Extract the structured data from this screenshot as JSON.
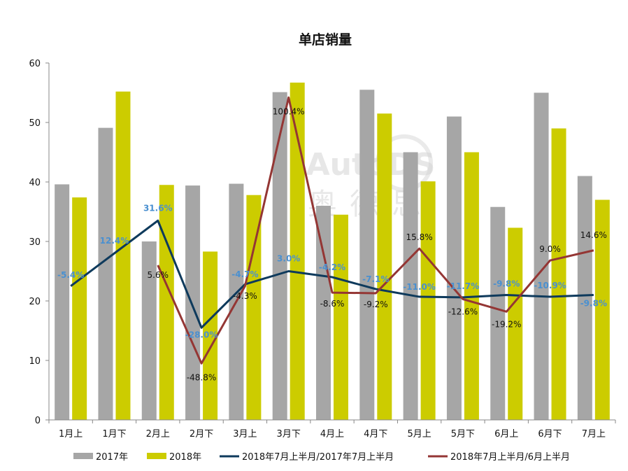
{
  "chart_data": {
    "type": "bar",
    "title": "单店销量",
    "categories": [
      "1月上",
      "1月下",
      "2月上",
      "2月下",
      "3月上",
      "3月下",
      "4月上",
      "4月下",
      "5月上",
      "5月下",
      "6月上",
      "6月下",
      "7月上"
    ],
    "ylim": [
      0,
      60
    ],
    "yticks": [
      0,
      10,
      20,
      30,
      40,
      50,
      60
    ],
    "series": [
      {
        "name": "2017年",
        "kind": "bar",
        "color": "#a6a6a6",
        "values": [
          39.6,
          49.1,
          30.0,
          39.4,
          39.7,
          55.1,
          36.0,
          55.5,
          45.0,
          51.0,
          35.8,
          55.0,
          41.0
        ]
      },
      {
        "name": "2018年",
        "kind": "bar",
        "color": "#cccc00",
        "values": [
          37.4,
          55.2,
          39.5,
          28.3,
          37.8,
          56.7,
          34.5,
          51.5,
          40.1,
          45.0,
          32.3,
          49.0,
          37.0
        ]
      },
      {
        "name": "2018年7月上半月/2017年7月上半月",
        "kind": "line",
        "color": "#0e3a5c",
        "values": [
          22.5,
          28.0,
          33.5,
          15.5,
          22.8,
          25.0,
          24.0,
          22.0,
          20.7,
          20.6,
          21.0,
          20.7,
          21.0
        ],
        "labels": [
          "-5.4%",
          "12.4%",
          "31.6%",
          "-28.0%",
          "-4.7%",
          "3.0%",
          "-4.2%",
          "-7.1%",
          "-11.0%",
          "-11.7%",
          "-9.8%",
          "-10.9%",
          "-9.8%"
        ],
        "label_color": "#4a90d0"
      },
      {
        "name": "2018年7月上半月/6月上半月",
        "kind": "line",
        "color": "#943634",
        "values": [
          null,
          null,
          26.0,
          9.5,
          22.5,
          54.2,
          21.4,
          21.3,
          28.8,
          20.3,
          18.2,
          26.8,
          28.5
        ],
        "labels": [
          null,
          null,
          "5.6%",
          "-48.8%",
          "-4.3%",
          "100.4%",
          "-8.6%",
          "-9.2%",
          "15.8%",
          "-12.6%",
          "-19.2%",
          "9.0%",
          "14.6%"
        ],
        "label_color": "#111111"
      }
    ],
    "grid": false,
    "legend_position": "bottom"
  },
  "watermark": {
    "brand": "AutoDS",
    "cjk": "奥德思"
  }
}
